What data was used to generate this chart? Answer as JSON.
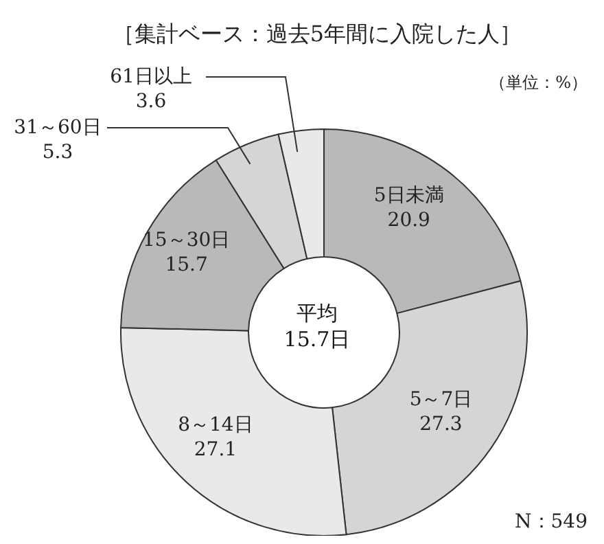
{
  "chart_data": {
    "type": "donut",
    "title": "［集計ベース：過去5年間に入院した人］",
    "categories": [
      "5日未満",
      "5～7日",
      "8～14日",
      "15～30日",
      "31～60日",
      "61日以上"
    ],
    "values": [
      20.9,
      27.3,
      27.1,
      15.7,
      5.3,
      3.6
    ],
    "colors": [
      "#b9b9bb",
      "#d5d5d7",
      "#e9e9eb",
      "#b9b9bb",
      "#d5d5d7",
      "#e9e9eb"
    ],
    "data_labels": true,
    "annotations": [
      "平均 15.7日",
      "（単位：%）",
      "N：549"
    ]
  }
}
